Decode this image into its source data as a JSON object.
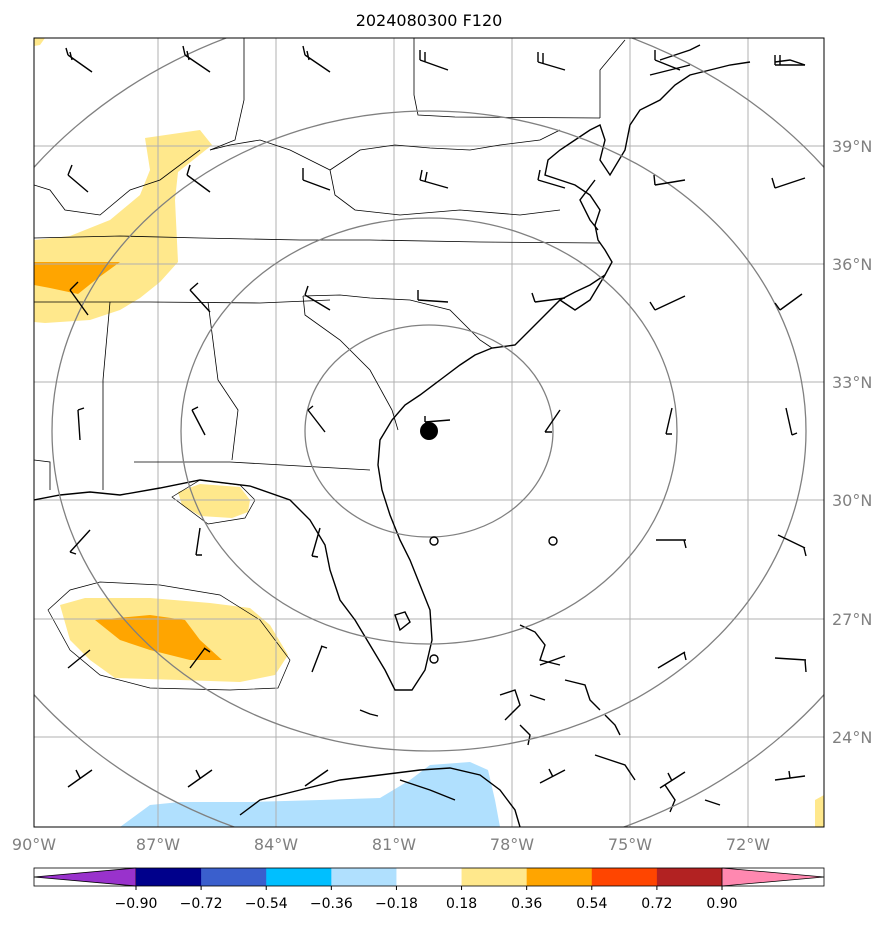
{
  "title": "2024080300 F120",
  "lon_labels": [
    "90°W",
    "87°W",
    "84°W",
    "81°W",
    "78°W",
    "75°W",
    "72°W"
  ],
  "lat_labels": [
    "39°N",
    "36°N",
    "33°N",
    "30°N",
    "27°N",
    "24°N"
  ],
  "colorbar": {
    "ticks": [
      "−0.90",
      "−0.72",
      "−0.54",
      "−0.36",
      "−0.18",
      "0.18",
      "0.36",
      "0.54",
      "0.72",
      "0.90"
    ],
    "colors": [
      "#9932cc",
      "#00008b",
      "#3a5fcd",
      "#00bfff",
      "#b0e0fe",
      "#ffffff",
      "#ffe88c",
      "#ffa500",
      "#ff4500",
      "#b22222",
      "#ff88b0"
    ]
  },
  "colors": {
    "grid": "#b0b0b0",
    "range_rings": "#808080",
    "coast": "#000000",
    "lat_lon_label": "#808080"
  }
}
